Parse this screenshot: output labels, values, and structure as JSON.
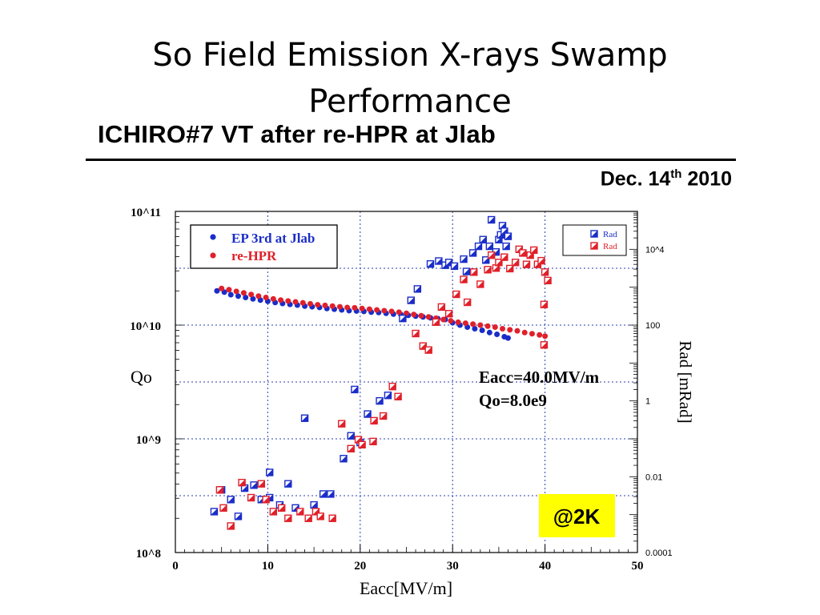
{
  "slide": {
    "title_line1": "So Field Emission X-rays Swamp",
    "title_line2": "Performance"
  },
  "figure": {
    "heading": "ICHIRO#7 VT after re-HPR at Jlab",
    "date_main": "Dec. 14",
    "date_sup": "th",
    "date_year": " 2010"
  },
  "chart_data": {
    "type": "scatter",
    "xlabel": "Eacc[MV/m]",
    "ylabel": "Qo",
    "y2label": "Rad [mRad]",
    "xlim": [
      0,
      50
    ],
    "ylim": [
      100000000.0,
      100000000000.0
    ],
    "y_scale": "log",
    "y2lim": [
      0.0001,
      100000
    ],
    "y2_scale": "log",
    "x_ticks": [
      "0",
      "10",
      "20",
      "30",
      "40",
      "50"
    ],
    "y_ticks": [
      "10^8",
      "10^9",
      "10^10",
      "10^11"
    ],
    "y2_ticks": [
      "0.0001",
      "0.01",
      "1",
      "100",
      "10^4"
    ],
    "grid": true,
    "annotation": {
      "line1": "Eacc=40.0MV/m",
      "line2": "Qo=8.0e9"
    },
    "badge": "@2K",
    "colors": {
      "blue": "#1a2dc8",
      "red": "#e0202a",
      "badge_bg": "#ffff00"
    },
    "legend_left": {
      "position": "top-left",
      "items": [
        {
          "label": "EP 3rd at Jlab",
          "color": "#1a2dc8"
        },
        {
          "label": "re-HPR",
          "color": "#e0202a"
        }
      ]
    },
    "legend_right": {
      "position": "top-right",
      "items": [
        {
          "label": "Rad",
          "color": "#1a2dc8"
        },
        {
          "label": "Rad",
          "color": "#e0202a"
        }
      ]
    },
    "series": [
      {
        "name": "EP 3rd at Jlab",
        "kind": "Qo",
        "axis": "left",
        "color": "#1a2dc8",
        "points": [
          [
            4.5,
            20000000000.0
          ],
          [
            5.3,
            19500000000.0
          ],
          [
            6.0,
            18500000000.0
          ],
          [
            6.8,
            18000000000.0
          ],
          [
            7.6,
            17500000000.0
          ],
          [
            8.4,
            17000000000.0
          ],
          [
            9.2,
            16600000000.0
          ],
          [
            10.0,
            16200000000.0
          ],
          [
            10.8,
            15800000000.0
          ],
          [
            11.6,
            15500000000.0
          ],
          [
            12.4,
            15200000000.0
          ],
          [
            13.2,
            15000000000.0
          ],
          [
            14.0,
            14700000000.0
          ],
          [
            14.8,
            14500000000.0
          ],
          [
            15.6,
            14300000000.0
          ],
          [
            16.4,
            14000000000.0
          ],
          [
            17.2,
            13800000000.0
          ],
          [
            18.0,
            13600000000.0
          ],
          [
            18.8,
            13400000000.0
          ],
          [
            19.6,
            13300000000.0
          ],
          [
            20.4,
            13200000000.0
          ],
          [
            21.2,
            13000000000.0
          ],
          [
            22.0,
            12900000000.0
          ],
          [
            22.8,
            12700000000.0
          ],
          [
            23.6,
            12500000000.0
          ],
          [
            24.4,
            12400000000.0
          ],
          [
            25.2,
            12200000000.0
          ],
          [
            26.0,
            12000000000.0
          ],
          [
            26.8,
            11800000000.0
          ],
          [
            27.6,
            11600000000.0
          ],
          [
            28.4,
            11400000000.0
          ],
          [
            29.2,
            11200000000.0
          ],
          [
            30.0,
            10500000000.0
          ],
          [
            30.8,
            10000000000.0
          ],
          [
            31.6,
            9600000000.0
          ],
          [
            32.4,
            9300000000.0
          ],
          [
            33.2,
            9000000000.0
          ],
          [
            34.0,
            8600000000.0
          ],
          [
            34.8,
            8300000000.0
          ],
          [
            35.6,
            7900000000.0
          ],
          [
            36.0,
            7700000000.0
          ]
        ]
      },
      {
        "name": "re-HPR",
        "kind": "Qo",
        "axis": "left",
        "color": "#e0202a",
        "points": [
          [
            5.0,
            21000000000.0
          ],
          [
            5.8,
            20500000000.0
          ],
          [
            6.6,
            19800000000.0
          ],
          [
            7.4,
            19200000000.0
          ],
          [
            8.2,
            18600000000.0
          ],
          [
            9.0,
            18000000000.0
          ],
          [
            9.8,
            17500000000.0
          ],
          [
            10.6,
            17000000000.0
          ],
          [
            11.4,
            16600000000.0
          ],
          [
            12.2,
            16300000000.0
          ],
          [
            13.0,
            16000000000.0
          ],
          [
            13.8,
            15700000000.0
          ],
          [
            14.6,
            15400000000.0
          ],
          [
            15.4,
            15100000000.0
          ],
          [
            16.2,
            14900000000.0
          ],
          [
            17.0,
            14700000000.0
          ],
          [
            17.8,
            14500000000.0
          ],
          [
            18.6,
            14300000000.0
          ],
          [
            19.4,
            14200000000.0
          ],
          [
            20.2,
            14000000000.0
          ],
          [
            21.0,
            13800000000.0
          ],
          [
            21.8,
            13600000000.0
          ],
          [
            22.6,
            13400000000.0
          ],
          [
            23.4,
            13200000000.0
          ],
          [
            24.2,
            13000000000.0
          ],
          [
            25.0,
            12700000000.0
          ],
          [
            25.8,
            12400000000.0
          ],
          [
            26.6,
            12100000000.0
          ],
          [
            27.4,
            11800000000.0
          ],
          [
            28.2,
            11500000000.0
          ],
          [
            29.0,
            11200000000.0
          ],
          [
            29.8,
            10900000000.0
          ],
          [
            30.6,
            10600000000.0
          ],
          [
            31.4,
            10400000000.0
          ],
          [
            32.2,
            10200000000.0
          ],
          [
            33.0,
            10000000000.0
          ],
          [
            33.8,
            9800000000.0
          ],
          [
            34.6,
            9600000000.0
          ],
          [
            35.4,
            9300000000.0
          ],
          [
            36.2,
            9100000000.0
          ],
          [
            37.0,
            8900000000.0
          ],
          [
            37.8,
            8600000000.0
          ],
          [
            38.6,
            8400000000.0
          ],
          [
            39.4,
            8200000000.0
          ],
          [
            40.0,
            8000000000.0
          ]
        ]
      },
      {
        "name": "Rad",
        "kind": "Rad",
        "axis": "right",
        "color": "#1a2dc8",
        "points": [
          [
            4.2,
            0.0012
          ],
          [
            5.0,
            0.0045
          ],
          [
            6.0,
            0.0025
          ],
          [
            6.8,
            0.0009
          ],
          [
            7.5,
            0.005
          ],
          [
            8.5,
            0.006
          ],
          [
            9.3,
            0.0025
          ],
          [
            10.2,
            0.0028
          ],
          [
            10.2,
            0.013
          ],
          [
            11.3,
            0.0018
          ],
          [
            12.2,
            0.0065
          ],
          [
            13.0,
            0.0015
          ],
          [
            14.0,
            0.35
          ],
          [
            15.0,
            0.0018
          ],
          [
            16.0,
            0.0035
          ],
          [
            16.8,
            0.0035
          ],
          [
            18.2,
            0.03
          ],
          [
            19.0,
            0.12
          ],
          [
            19.4,
            2.0
          ],
          [
            20.0,
            0.08
          ],
          [
            20.8,
            0.45
          ],
          [
            22.1,
            1.0
          ],
          [
            23.0,
            1.4
          ],
          [
            24.6,
            150
          ],
          [
            25.5,
            450
          ],
          [
            26.2,
            900
          ],
          [
            27.6,
            4100
          ],
          [
            28.5,
            4900
          ],
          [
            29.2,
            3800
          ],
          [
            29.6,
            4500
          ],
          [
            30.2,
            3600
          ],
          [
            31.2,
            5500
          ],
          [
            31.5,
            2600
          ],
          [
            32.2,
            8000
          ],
          [
            32.8,
            12000
          ],
          [
            33.3,
            18000
          ],
          [
            33.6,
            5200
          ],
          [
            34.0,
            12000
          ],
          [
            34.2,
            60000
          ],
          [
            34.7,
            8500
          ],
          [
            35.0,
            18000
          ],
          [
            35.2,
            24000
          ],
          [
            35.4,
            42000
          ],
          [
            35.6,
            30000
          ],
          [
            35.8,
            12000
          ],
          [
            36.0,
            22000
          ]
        ]
      },
      {
        "name": "Rad",
        "kind": "Rad",
        "axis": "right",
        "color": "#e0202a",
        "points": [
          [
            4.8,
            0.0045
          ],
          [
            5.2,
            0.0015
          ],
          [
            6.0,
            0.0005
          ],
          [
            7.2,
            0.007
          ],
          [
            8.2,
            0.0028
          ],
          [
            9.3,
            0.0065
          ],
          [
            9.8,
            0.0025
          ],
          [
            10.6,
            0.0012
          ],
          [
            11.5,
            0.0015
          ],
          [
            12.2,
            0.0008
          ],
          [
            13.5,
            0.0012
          ],
          [
            14.4,
            0.0008
          ],
          [
            15.2,
            0.0012
          ],
          [
            15.7,
            0.0009
          ],
          [
            17.0,
            0.0008
          ],
          [
            18.0,
            0.25
          ],
          [
            19.0,
            0.055
          ],
          [
            19.8,
            0.095
          ],
          [
            20.2,
            0.07
          ],
          [
            21.4,
            0.085
          ],
          [
            21.5,
            0.3
          ],
          [
            22.5,
            0.4
          ],
          [
            23.5,
            2.4
          ],
          [
            24.1,
            1.3
          ],
          [
            26.0,
            60
          ],
          [
            26.8,
            28
          ],
          [
            27.4,
            22
          ],
          [
            28.2,
            120
          ],
          [
            28.8,
            300
          ],
          [
            29.6,
            200
          ],
          [
            30.4,
            650
          ],
          [
            31.2,
            1600
          ],
          [
            31.6,
            400
          ],
          [
            32.3,
            2500
          ],
          [
            33.0,
            1200
          ],
          [
            33.8,
            2900
          ],
          [
            34.2,
            7000
          ],
          [
            34.7,
            3200
          ],
          [
            35.0,
            4500
          ],
          [
            35.6,
            6200
          ],
          [
            36.2,
            3100
          ],
          [
            36.8,
            4500
          ],
          [
            37.2,
            10000
          ],
          [
            37.6,
            8000
          ],
          [
            38.0,
            4000
          ],
          [
            38.4,
            7000
          ],
          [
            38.8,
            9500
          ],
          [
            39.2,
            4000
          ],
          [
            39.6,
            5000
          ],
          [
            39.9,
            350
          ],
          [
            40.0,
            2500
          ],
          [
            40.3,
            1500
          ],
          [
            39.9,
            30
          ]
        ]
      }
    ]
  }
}
